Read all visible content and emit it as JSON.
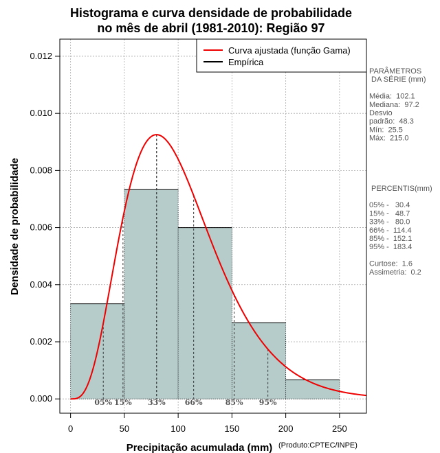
{
  "chart_data": {
    "type": "bar",
    "title_lines": [
      "Histograma e curva densidade de probabilidade",
      "no mês de abril (1981-2010): Região 97"
    ],
    "xlabel": "Precipitação acumulada (mm)",
    "ylabel": "Densidade de probabilidade",
    "credit": "(Produto:CPTEC/INPE)",
    "xlim": [
      -10,
      275
    ],
    "ylim": [
      -0.0005,
      0.0126
    ],
    "x_ticks": [
      0,
      50,
      100,
      150,
      200,
      250
    ],
    "y_ticks": [
      0.0,
      0.002,
      0.004,
      0.006,
      0.008,
      0.01,
      0.012
    ],
    "y_tick_labels": [
      "0.000",
      "0.002",
      "0.004",
      "0.006",
      "0.008",
      "0.010",
      "0.012"
    ],
    "grid": true,
    "bins": [
      {
        "x0": 0,
        "x1": 50,
        "density": 0.00333
      },
      {
        "x0": 50,
        "x1": 100,
        "density": 0.00733
      },
      {
        "x0": 100,
        "x1": 150,
        "density": 0.006
      },
      {
        "x0": 150,
        "x1": 200,
        "density": 0.00267
      },
      {
        "x0": 200,
        "x1": 250,
        "density": 0.00067
      }
    ],
    "bar_color": "#b5cccb",
    "curve": {
      "shape": 4.6,
      "scale": 22.2,
      "color": "#ee0000"
    },
    "legend": {
      "position": "top-right",
      "entries": [
        {
          "label": "Curva ajustada (função Gama)",
          "color": "#ee0000"
        },
        {
          "label": "Empírica",
          "color": "#000000"
        }
      ]
    },
    "percentile_markers": [
      {
        "label": "05%",
        "x": 30.4
      },
      {
        "label": "15%",
        "x": 48.7
      },
      {
        "label": "33%",
        "x": 80.0
      },
      {
        "label": "66%",
        "x": 114.4
      },
      {
        "label": "85%",
        "x": 152.1
      },
      {
        "label": "95%",
        "x": 183.4
      }
    ]
  },
  "side_panel": {
    "lines": [
      "PARÂMETROS",
      " DA SÉRIE (mm)",
      "",
      "Média:  102.1",
      "Mediana:  97.2",
      "Desvio",
      "padrão:  48.3",
      "Mín:  25.5",
      "Máx:  215.0",
      "",
      "",
      "",
      "",
      "",
      " PERCENTIS(mm)",
      "",
      "05% -   30.4",
      "15% -   48.7",
      "33% -   80.0",
      "66% -  114.4",
      "85% -  152.1",
      "95% -  183.4",
      "",
      "Curtose:  1.6",
      "Assimetria:  0.2"
    ]
  }
}
